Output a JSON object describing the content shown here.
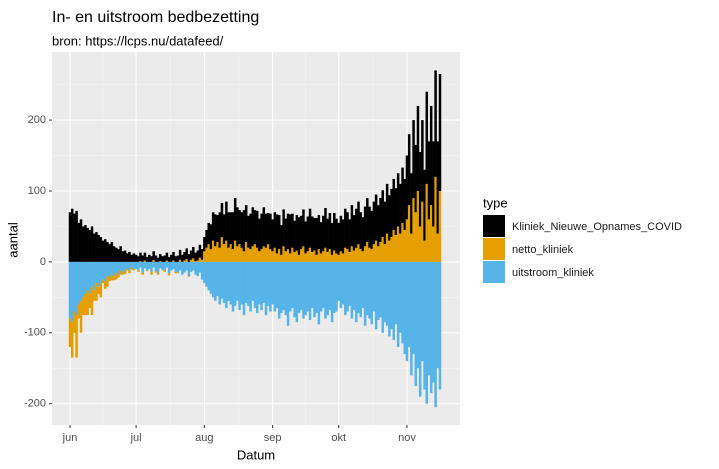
{
  "chart_data": {
    "type": "bar",
    "title": "In- en uitstroom bedbezetting",
    "subtitle": "bron: https://lcps.nu/datafeed/",
    "x_label": "Datum",
    "y_label": "aantal",
    "legend_title": "type",
    "stacked": true,
    "grid": true,
    "categories": [
      "jun",
      null,
      null,
      null,
      null,
      null,
      null,
      null,
      null,
      null,
      null,
      null,
      null,
      null,
      null,
      null,
      null,
      null,
      null,
      null,
      null,
      null,
      null,
      null,
      null,
      null,
      null,
      null,
      null,
      null,
      "jul",
      null,
      null,
      null,
      null,
      null,
      null,
      null,
      null,
      null,
      null,
      null,
      null,
      null,
      null,
      null,
      null,
      null,
      null,
      null,
      null,
      null,
      null,
      null,
      null,
      null,
      null,
      null,
      null,
      null,
      null,
      "aug",
      null,
      null,
      null,
      null,
      null,
      null,
      null,
      null,
      null,
      null,
      null,
      null,
      null,
      null,
      null,
      null,
      null,
      null,
      null,
      null,
      null,
      null,
      null,
      null,
      null,
      null,
      null,
      null,
      null,
      null,
      "sep",
      null,
      null,
      null,
      null,
      null,
      null,
      null,
      null,
      null,
      null,
      null,
      null,
      null,
      null,
      null,
      null,
      null,
      null,
      null,
      null,
      null,
      null,
      null,
      null,
      null,
      null,
      null,
      null,
      null,
      "okt",
      null,
      null,
      null,
      null,
      null,
      null,
      null,
      null,
      null,
      null,
      null,
      null,
      null,
      null,
      null,
      null,
      null,
      null,
      null,
      null,
      null,
      null,
      null,
      null,
      null,
      null,
      null,
      null,
      null,
      null,
      "nov",
      null,
      null,
      null,
      null,
      null,
      null,
      null,
      null,
      null,
      null,
      null,
      null,
      null,
      null,
      null
    ],
    "series": [
      {
        "name": "Kliniek_Nieuwe_Opnames_COVID",
        "color": "#000000",
        "values": [
          70,
          75,
          68,
          72,
          55,
          60,
          50,
          52,
          48,
          45,
          50,
          40,
          42,
          38,
          35,
          30,
          32,
          28,
          25,
          28,
          22,
          20,
          18,
          22,
          15,
          16,
          12,
          14,
          10,
          12,
          10,
          8,
          12,
          9,
          11,
          7,
          10,
          8,
          12,
          9,
          6,
          10,
          8,
          9,
          11,
          7,
          10,
          12,
          8,
          9,
          14,
          10,
          12,
          15,
          11,
          13,
          16,
          12,
          14,
          18,
          15,
          20,
          25,
          30,
          35,
          40,
          45,
          38,
          50,
          48,
          42,
          55,
          50,
          45,
          52,
          60,
          55,
          48,
          50,
          58,
          52,
          45,
          50,
          55,
          48,
          52,
          46,
          50,
          55,
          48,
          44,
          50,
          45,
          50,
          55,
          48,
          42,
          52,
          46,
          50,
          55,
          48,
          44,
          50,
          53,
          47,
          52,
          45,
          49,
          55,
          50,
          46,
          52,
          48,
          44,
          50,
          56,
          47,
          51,
          45,
          53,
          49,
          45,
          50,
          48,
          55,
          52,
          46,
          58,
          50,
          55,
          60,
          52,
          48,
          56,
          62,
          58,
          54,
          60,
          65,
          58,
          62,
          66,
          60,
          70,
          64,
          68,
          72,
          66,
          75,
          70,
          78,
          72,
          90,
          100,
          85,
          110,
          95,
          120,
          105,
          115,
          100,
          130,
          110,
          140,
          120,
          150,
          130,
          165
        ]
      },
      {
        "name": "netto_kliniek",
        "color": "#e69f00",
        "values": [
          -40,
          -50,
          -30,
          -60,
          -20,
          -45,
          -25,
          -30,
          -35,
          -20,
          -40,
          -15,
          -25,
          -10,
          -20,
          -5,
          -10,
          -15,
          -5,
          -8,
          -6,
          -10,
          -4,
          -6,
          -3,
          -5,
          -2,
          -4,
          -3,
          -2,
          0,
          -2,
          1,
          -3,
          2,
          -1,
          0,
          -4,
          3,
          -2,
          -3,
          1,
          -1,
          -2,
          2,
          -3,
          0,
          2,
          -2,
          -1,
          3,
          0,
          2,
          4,
          -1,
          3,
          5,
          1,
          2,
          6,
          3,
          15,
          20,
          25,
          18,
          30,
          22,
          28,
          20,
          35,
          25,
          30,
          20,
          25,
          18,
          30,
          22,
          25,
          20,
          15,
          28,
          20,
          18,
          22,
          25,
          20,
          15,
          18,
          22,
          20,
          25,
          18,
          15,
          20,
          12,
          18,
          10,
          22,
          15,
          18,
          12,
          20,
          14,
          16,
          10,
          18,
          22,
          12,
          15,
          20,
          14,
          16,
          10,
          18,
          12,
          15,
          20,
          14,
          18,
          10,
          16,
          12,
          10,
          15,
          12,
          20,
          18,
          14,
          22,
          16,
          20,
          25,
          18,
          15,
          22,
          28,
          20,
          18,
          25,
          30,
          22,
          28,
          35,
          25,
          40,
          30,
          35,
          45,
          38,
          50,
          40,
          55,
          45,
          60,
          80,
          40,
          90,
          70,
          100,
          50,
          85,
          30,
          110,
          60,
          80,
          50,
          120,
          40,
          100
        ]
      },
      {
        "name": "uitstroom_kliniek",
        "color": "#56b4e9",
        "values": [
          -80,
          -85,
          -70,
          -75,
          -60,
          -55,
          -50,
          -45,
          -40,
          -45,
          -35,
          -40,
          -30,
          -35,
          -30,
          -25,
          -28,
          -20,
          -22,
          -18,
          -20,
          -15,
          -18,
          -12,
          -15,
          -12,
          -10,
          -12,
          -8,
          -10,
          -10,
          -12,
          -8,
          -15,
          -9,
          -12,
          -10,
          -14,
          -8,
          -13,
          -15,
          -9,
          -11,
          -12,
          -8,
          -16,
          -12,
          -10,
          -14,
          -15,
          -12,
          -18,
          -15,
          -12,
          -20,
          -14,
          -12,
          -18,
          -20,
          -15,
          -25,
          -30,
          -35,
          -40,
          -45,
          -50,
          -55,
          -48,
          -60,
          -52,
          -58,
          -65,
          -55,
          -60,
          -70,
          -62,
          -55,
          -68,
          -60,
          -75,
          -58,
          -62,
          -70,
          -55,
          -65,
          -72,
          -60,
          -68,
          -58,
          -75,
          -62,
          -70,
          -60,
          -70,
          -65,
          -80,
          -72,
          -68,
          -75,
          -90,
          -70,
          -65,
          -78,
          -85,
          -72,
          -68,
          -80,
          -75,
          -70,
          -82,
          -65,
          -78,
          -72,
          -88,
          -70,
          -65,
          -80,
          -75,
          -68,
          -85,
          -72,
          -70,
          -55,
          -65,
          -60,
          -75,
          -70,
          -62,
          -80,
          -68,
          -85,
          -72,
          -78,
          -65,
          -90,
          -75,
          -80,
          -88,
          -70,
          -95,
          -82,
          -78,
          -100,
          -85,
          -90,
          -105,
          -95,
          -110,
          -88,
          -120,
          -100,
          -115,
          -130,
          -140,
          -120,
          -160,
          -130,
          -175,
          -150,
          -190,
          -140,
          -180,
          -200,
          -160,
          -185,
          -170,
          -205,
          -150,
          -180
        ]
      }
    ],
    "ylim": [
      -230,
      296
    ],
    "yticks": [
      -200,
      -100,
      0,
      100,
      200
    ]
  }
}
